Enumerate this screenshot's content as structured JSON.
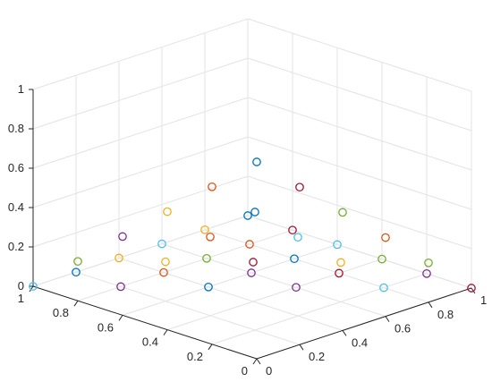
{
  "chart_data": {
    "type": "scatter",
    "projection": "3d",
    "title": "",
    "xlabel": "",
    "ylabel": "",
    "zlabel": "",
    "xlim": [
      0,
      1
    ],
    "ylim": [
      0,
      1
    ],
    "zlim": [
      0,
      1
    ],
    "grid": true,
    "legend": "none",
    "marker": "open circle",
    "x_ticks": [
      "0",
      "0.2",
      "0.4",
      "0.6",
      "0.8",
      "1"
    ],
    "y_ticks": [
      "0",
      "0.2",
      "0.4",
      "0.6",
      "0.8",
      "1"
    ],
    "z_ticks": [
      "0",
      "0.2",
      "0.4",
      "0.6",
      "0.8",
      "1"
    ],
    "color_cycle": [
      "#0072BD",
      "#D95319",
      "#EDB120",
      "#7E2F8E",
      "#77AC30",
      "#4DBEEE",
      "#A2142F"
    ],
    "point_set": "all points (x, y, z) with x, y, z in {0, 0.2, 0.4, 0.6, 0.8, 1} and x + y + z = 1, plotted as open circles with colors cycling through the color_cycle",
    "step": 0.2
  }
}
